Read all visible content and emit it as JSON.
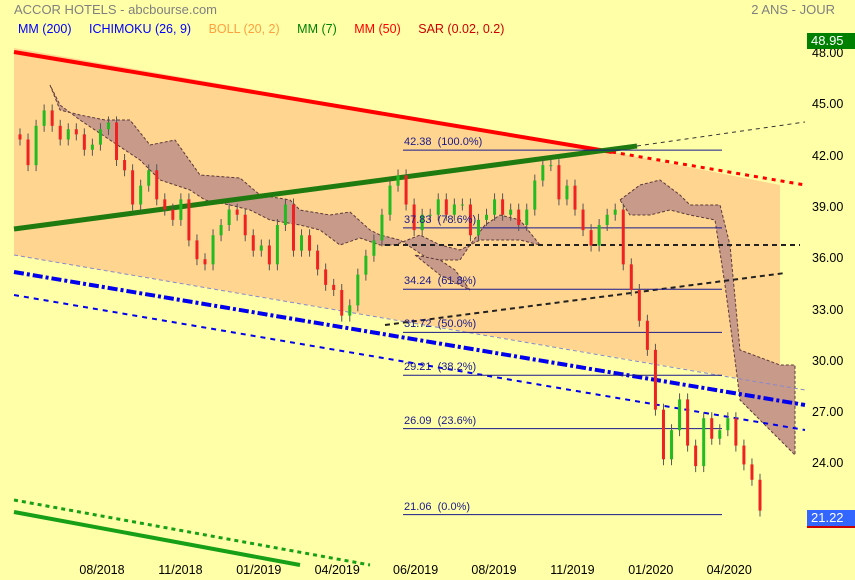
{
  "header": {
    "title": "ACCOR HOTELS - abcbourse.com",
    "period": "2 ANS - JOUR"
  },
  "legend": [
    {
      "label": "MM (200)",
      "color": "#0000ff"
    },
    {
      "label": "ICHIMOKU (26, 9)",
      "color": "#0000ff"
    },
    {
      "label": "BOLL (20, 2)",
      "color": "#ffa040"
    },
    {
      "label": "MM (7)",
      "color": "#008000"
    },
    {
      "label": "MM (50)",
      "color": "#ff0000"
    },
    {
      "label": "SAR (0.02, 0.2)",
      "color": "#cc0000"
    }
  ],
  "price_boxes": {
    "high": {
      "value": "48.95",
      "color": "#008000"
    },
    "last": {
      "value": "21.22",
      "color": "#3366ff"
    }
  },
  "chart_data": {
    "type": "candlestick",
    "title": "ACCOR HOTELS",
    "ylim": [
      20.5,
      49
    ],
    "y_ticks": [
      "48.00",
      "45.00",
      "42.00",
      "39.00",
      "36.00",
      "33.00",
      "30.00",
      "27.00",
      "24.00"
    ],
    "x_ticks": [
      "08/2018",
      "11/2018",
      "01/2019",
      "04/2019",
      "06/2019",
      "08/2019",
      "11/2019",
      "01/2020",
      "04/2020"
    ],
    "grid": false,
    "colors": {
      "up": "#22bb22",
      "down": "#ee2222"
    },
    "closes": [
      43.0,
      41.5,
      43.8,
      44.7,
      43.8,
      43.0,
      43.6,
      43.3,
      42.4,
      42.7,
      43.6,
      44.0,
      41.8,
      41.2,
      39.2,
      40.3,
      41.2,
      39.5,
      38.9,
      38.3,
      39.5,
      37.1,
      36.0,
      35.7,
      37.4,
      38.0,
      38.9,
      38.6,
      37.4,
      36.5,
      36.8,
      35.7,
      38.0,
      39.2,
      36.5,
      37.4,
      36.5,
      35.4,
      34.5,
      34.2,
      32.7,
      33.3,
      35.1,
      36.2,
      37.1,
      38.6,
      40.3,
      40.9,
      39.2,
      37.7,
      38.6,
      38.6,
      39.5,
      38.6,
      39.2,
      39.2,
      37.4,
      38.3,
      38.6,
      39.5,
      38.6,
      38.9,
      38.0,
      38.9,
      40.6,
      41.5,
      41.5,
      39.5,
      40.3,
      38.9,
      37.7,
      36.8,
      38.0,
      38.6,
      38.9,
      35.7,
      34.2,
      32.4,
      30.7,
      27.2,
      24.3,
      26.0,
      27.8,
      25.1,
      23.9,
      26.7,
      25.5,
      26.0,
      26.7,
      25.1,
      24.0,
      23.1,
      21.3
    ],
    "fibonacci": [
      {
        "price": 42.38,
        "label": "42.38  (100.0%)"
      },
      {
        "price": 37.83,
        "label": "37.83  (78.6%)"
      },
      {
        "price": 34.24,
        "label": "34.24  (61.8%)"
      },
      {
        "price": 31.72,
        "label": "31.72  (50.0%)"
      },
      {
        "price": 29.21,
        "label": "29.21  (38.2%)"
      },
      {
        "price": 26.09,
        "label": "26.09  (23.6%)"
      },
      {
        "price": 21.06,
        "label": "21.06  (0.0%)"
      }
    ]
  }
}
